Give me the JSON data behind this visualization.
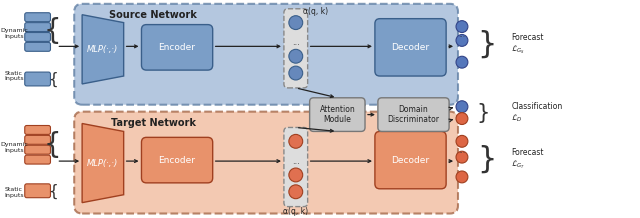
{
  "fig_width": 6.4,
  "fig_height": 2.18,
  "dpi": 100,
  "source_label": "Source Network",
  "target_label": "Target Network",
  "mlp_label": "MLP(·,·)",
  "encoder_label": "Encoder",
  "decoder_label": "Decoder",
  "attention_label": "Attention\nModule",
  "discriminator_label": "Domain\nDiscriminator",
  "alpha_label": "α(q, k)",
  "forecast_s": "Forecast\n$\\mathcal{L}_{G_S}$",
  "classification": "Classification\n$\\mathcal{L}_{D}$",
  "forecast_t": "Forecast\n$\\mathcal{L}_{G_T}$",
  "dynamic_inputs": "Dynamic\nInputs",
  "static_inputs": "Static\nInputs",
  "blue_fill": "#7B9EC7",
  "blue_edge": "#3A5F8A",
  "blue_bg": "#9BB5D5",
  "blue_bg_edge": "#5A7AA0",
  "orange_fill": "#E8926B",
  "orange_edge": "#A04020",
  "orange_bg": "#F0B898",
  "orange_bg_edge": "#A06040",
  "gray_fill": "#C8C8C8",
  "gray_edge": "#777777",
  "attn_circle_src": "#6688BB",
  "attn_circle_tgt": "#E07050",
  "disc_circle_blue": "#5577BB",
  "disc_circle_orange": "#DD6644",
  "arrow_color": "#222222",
  "text_color": "#111111",
  "white": "#FFFFFF"
}
